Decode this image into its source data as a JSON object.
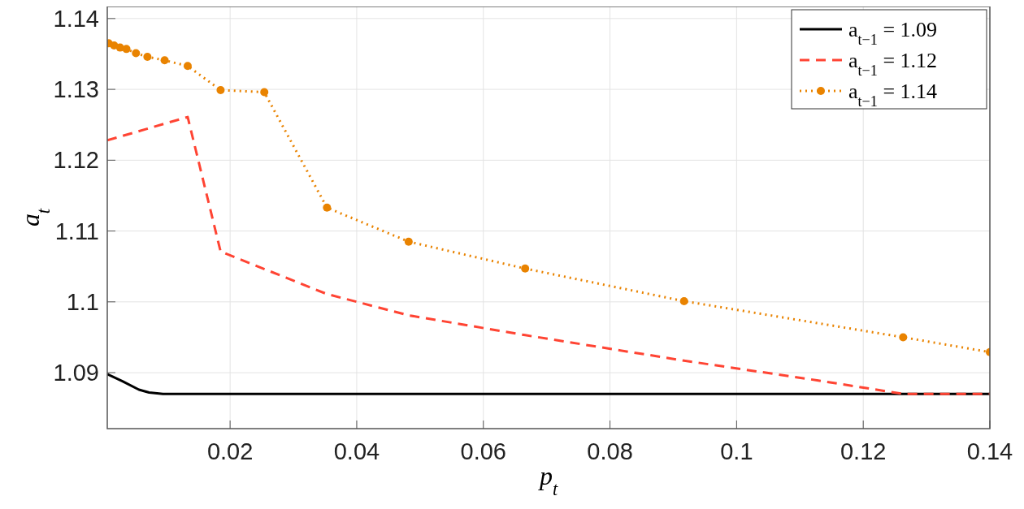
{
  "chart_data": {
    "type": "line",
    "xlabel": "p$_{t}$",
    "ylabel": "a$_{t}$",
    "xlim": [
      0.0006,
      0.14
    ],
    "ylim": [
      1.0821,
      1.1417
    ],
    "xticks": [
      0.02,
      0.04,
      0.06,
      0.08,
      0.1,
      0.12,
      0.14
    ],
    "yticks": [
      1.09,
      1.1,
      1.11,
      1.12,
      1.13,
      1.14
    ],
    "grid": true,
    "legend": "top right",
    "series": [
      {
        "name": "a$_{t−1}$ = 1.09",
        "color": "#000000",
        "line_style": "solid",
        "marker": "none",
        "x": [
          0.0006,
          0.003,
          0.0056,
          0.0072,
          0.0094,
          0.14
        ],
        "values": [
          1.0898,
          1.0888,
          1.0876,
          1.0872,
          1.087,
          1.087
        ]
      },
      {
        "name": "a$_{t−1}$ = 1.12",
        "color": "#ff4433",
        "line_style": "dashed",
        "marker": "none",
        "x": [
          0.0006,
          0.0133,
          0.0185,
          0.0353,
          0.0482,
          0.0666,
          0.0917,
          0.1129,
          0.1263,
          0.14
        ],
        "values": [
          1.1228,
          1.1261,
          1.1071,
          1.1011,
          1.0981,
          1.0953,
          1.0917,
          1.0889,
          1.087,
          1.087
        ]
      },
      {
        "name": "a$_{t−1}$ = 1.14",
        "color": "#e98300",
        "line_style": "dotted",
        "marker": "circle",
        "x": [
          0.00081,
          0.00168,
          0.00262,
          0.00362,
          0.00513,
          0.00694,
          0.00966,
          0.0133,
          0.0185,
          0.0254,
          0.0353,
          0.0482,
          0.0666,
          0.0917,
          0.1263,
          0.14
        ],
        "values": [
          1.1365,
          1.1362,
          1.1359,
          1.1357,
          1.1351,
          1.1346,
          1.1341,
          1.1333,
          1.1299,
          1.1296,
          1.1133,
          1.1085,
          1.1047,
          1.1001,
          1.095,
          1.0929
        ]
      }
    ]
  }
}
